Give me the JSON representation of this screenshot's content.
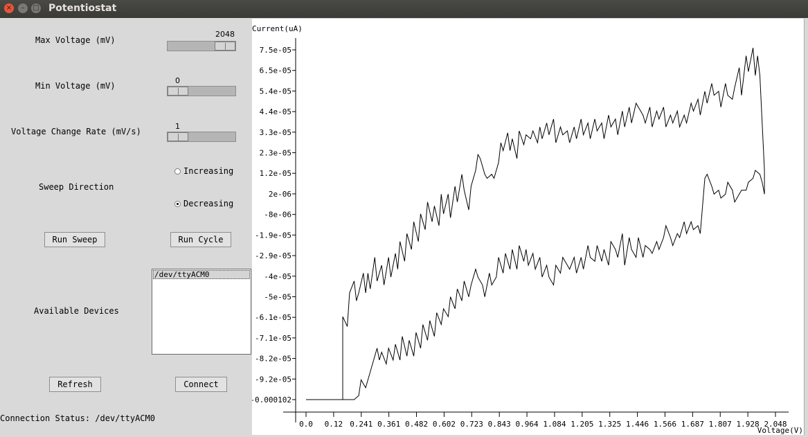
{
  "window": {
    "title": "Potentiostat"
  },
  "controls": {
    "max_voltage": {
      "label": "Max Voltage (mV)",
      "value": "2048",
      "fraction": 1.0
    },
    "min_voltage": {
      "label": "Min Voltage (mV)",
      "value": "0",
      "fraction": 0.0
    },
    "rate": {
      "label": "Voltage Change Rate (mV/s)",
      "value": "1",
      "fraction": 0.0
    },
    "sweep": {
      "label": "Sweep Direction",
      "options": [
        "Increasing",
        "Decreasing"
      ],
      "selected": "Decreasing"
    },
    "run_sweep": "Run Sweep",
    "run_cycle": "Run Cycle",
    "devices_label": "Available Devices",
    "devices": [
      "/dev/ttyACM0"
    ],
    "refresh": "Refresh",
    "connect": "Connect",
    "status": "Connection Status: /dev/ttyACM0"
  },
  "chart_data": {
    "type": "line",
    "ylabel": "Current(uA)",
    "xlabel": "Voltage(V)",
    "x_ticks": [
      "0.0",
      "0.12",
      "0.241",
      "0.361",
      "0.482",
      "0.602",
      "0.723",
      "0.843",
      "0.964",
      "1.084",
      "1.205",
      "1.325",
      "1.446",
      "1.566",
      "1.687",
      "1.807",
      "1.928",
      "2.048"
    ],
    "y_ticks": [
      "7.5e-05",
      "6.5e-05",
      "5.4e-05",
      "4.4e-05",
      "3.3e-05",
      "2.3e-05",
      "1.2e-05",
      "2e-06",
      "-8e-06",
      "-1.9e-05",
      "-2.9e-05",
      "-4e-05",
      "-5e-05",
      "-6.1e-05",
      "-7.1e-05",
      "-8.2e-05",
      "-9.2e-05",
      "-0.000102"
    ],
    "xlim": [
      0,
      2.048
    ],
    "ylim": [
      -0.000102,
      7.5e-05
    ],
    "series": [
      {
        "values": [
          [
            0.0,
            -0.000102
          ],
          [
            0.1,
            -0.000102
          ],
          [
            0.16,
            -0.000102
          ],
          [
            0.16,
            -6e-05
          ],
          [
            0.18,
            -6.5e-05
          ],
          [
            0.19,
            -4.8e-05
          ],
          [
            0.21,
            -4.2e-05
          ],
          [
            0.22,
            -5.2e-05
          ],
          [
            0.23,
            -4.8e-05
          ],
          [
            0.25,
            -3.8e-05
          ],
          [
            0.26,
            -4.8e-05
          ],
          [
            0.27,
            -3.8e-05
          ],
          [
            0.28,
            -4.6e-05
          ],
          [
            0.3,
            -3e-05
          ],
          [
            0.31,
            -4.2e-05
          ],
          [
            0.33,
            -3.4e-05
          ],
          [
            0.34,
            -4.4e-05
          ],
          [
            0.36,
            -3e-05
          ],
          [
            0.37,
            -4e-05
          ],
          [
            0.39,
            -2.8e-05
          ],
          [
            0.4,
            -3.6e-05
          ],
          [
            0.41,
            -2.2e-05
          ],
          [
            0.43,
            -3.2e-05
          ],
          [
            0.44,
            -1.8e-05
          ],
          [
            0.46,
            -2.6e-05
          ],
          [
            0.47,
            -1.2e-05
          ],
          [
            0.49,
            -2.2e-05
          ],
          [
            0.5,
            -8e-06
          ],
          [
            0.52,
            -1.6e-05
          ],
          [
            0.53,
            -2e-06
          ],
          [
            0.55,
            -1.2e-05
          ],
          [
            0.56,
            -4e-06
          ],
          [
            0.58,
            -1.4e-05
          ],
          [
            0.59,
            2e-06
          ],
          [
            0.6,
            -8e-06
          ],
          [
            0.62,
            2e-06
          ],
          [
            0.63,
            -1e-05
          ],
          [
            0.65,
            6e-06
          ],
          [
            0.66,
            -2e-06
          ],
          [
            0.68,
            1.2e-05
          ],
          [
            0.69,
            4e-06
          ],
          [
            0.71,
            -6e-06
          ],
          [
            0.72,
            6e-06
          ],
          [
            0.74,
            1.4e-05
          ],
          [
            0.75,
            2.2e-05
          ],
          [
            0.76,
            2e-05
          ],
          [
            0.78,
            1.2e-05
          ],
          [
            0.79,
            1e-05
          ],
          [
            0.81,
            1.2e-05
          ],
          [
            0.82,
            1e-05
          ],
          [
            0.84,
            1.8e-05
          ],
          [
            0.85,
            2.8e-05
          ],
          [
            0.86,
            2.4e-05
          ],
          [
            0.88,
            3.3e-05
          ],
          [
            0.89,
            2.4e-05
          ],
          [
            0.9,
            3e-05
          ],
          [
            0.92,
            2e-05
          ],
          [
            0.93,
            3.4e-05
          ],
          [
            0.95,
            2.7e-05
          ],
          [
            0.96,
            3.2e-05
          ],
          [
            0.98,
            3e-05
          ],
          [
            0.99,
            3.4e-05
          ],
          [
            1.01,
            2.8e-05
          ],
          [
            1.02,
            3.6e-05
          ],
          [
            1.03,
            3e-05
          ],
          [
            1.05,
            3.8e-05
          ],
          [
            1.06,
            3.2e-05
          ],
          [
            1.08,
            4e-05
          ],
          [
            1.09,
            2.8e-05
          ],
          [
            1.11,
            3.6e-05
          ],
          [
            1.12,
            3.2e-05
          ],
          [
            1.14,
            3.4e-05
          ],
          [
            1.15,
            2.8e-05
          ],
          [
            1.17,
            3.6e-05
          ],
          [
            1.18,
            3e-05
          ],
          [
            1.2,
            4e-05
          ],
          [
            1.21,
            3.2e-05
          ],
          [
            1.23,
            3.8e-05
          ],
          [
            1.24,
            3e-05
          ],
          [
            1.26,
            4e-05
          ],
          [
            1.27,
            3.4e-05
          ],
          [
            1.29,
            3.8e-05
          ],
          [
            1.3,
            3e-05
          ],
          [
            1.32,
            4.2e-05
          ],
          [
            1.33,
            3.6e-05
          ],
          [
            1.35,
            4e-05
          ],
          [
            1.36,
            3.2e-05
          ],
          [
            1.38,
            4.4e-05
          ],
          [
            1.39,
            3.6e-05
          ],
          [
            1.41,
            4.6e-05
          ],
          [
            1.42,
            3.8e-05
          ],
          [
            1.44,
            4.8e-05
          ],
          [
            1.45,
            4.6e-05
          ],
          [
            1.47,
            4.2e-05
          ],
          [
            1.48,
            3.8e-05
          ],
          [
            1.5,
            4.6e-05
          ],
          [
            1.51,
            3.6e-05
          ],
          [
            1.53,
            4.4e-05
          ],
          [
            1.54,
            4e-05
          ],
          [
            1.56,
            4.6e-05
          ],
          [
            1.57,
            3.6e-05
          ],
          [
            1.59,
            4.2e-05
          ],
          [
            1.6,
            3.8e-05
          ],
          [
            1.62,
            4.4e-05
          ],
          [
            1.63,
            3.6e-05
          ],
          [
            1.65,
            4.2e-05
          ],
          [
            1.66,
            3.8e-05
          ],
          [
            1.68,
            4.8e-05
          ],
          [
            1.69,
            4.4e-05
          ],
          [
            1.71,
            5e-05
          ],
          [
            1.72,
            4.2e-05
          ],
          [
            1.74,
            5.4e-05
          ],
          [
            1.75,
            4.8e-05
          ],
          [
            1.77,
            5.8e-05
          ],
          [
            1.78,
            5.2e-05
          ],
          [
            1.8,
            5.4e-05
          ],
          [
            1.81,
            4.6e-05
          ],
          [
            1.83,
            5.8e-05
          ],
          [
            1.84,
            5.2e-05
          ],
          [
            1.86,
            5e-05
          ],
          [
            1.87,
            5.6e-05
          ],
          [
            1.89,
            6.6e-05
          ],
          [
            1.9,
            5.2e-05
          ],
          [
            1.92,
            7.2e-05
          ],
          [
            1.93,
            6.4e-05
          ],
          [
            1.95,
            7.6e-05
          ],
          [
            1.96,
            6.2e-05
          ],
          [
            1.97,
            7.2e-05
          ],
          [
            1.98,
            6.2e-05
          ],
          [
            2.0,
            1.4e-05
          ],
          [
            2.0,
            2e-06
          ]
        ]
      },
      {
        "values": [
          [
            2.0,
            2e-06
          ],
          [
            1.99,
            8e-06
          ],
          [
            1.98,
            1.2e-05
          ],
          [
            1.96,
            1.4e-05
          ],
          [
            1.95,
            1e-05
          ],
          [
            1.93,
            8e-06
          ],
          [
            1.92,
            4e-06
          ],
          [
            1.9,
            4e-06
          ],
          [
            1.89,
            2e-06
          ],
          [
            1.87,
            -2e-06
          ],
          [
            1.86,
            4e-06
          ],
          [
            1.84,
            8e-06
          ],
          [
            1.83,
            2e-06
          ],
          [
            1.81,
            0.0
          ],
          [
            1.8,
            4e-06
          ],
          [
            1.78,
            2e-06
          ],
          [
            1.77,
            6e-06
          ],
          [
            1.75,
            1.2e-05
          ],
          [
            1.74,
            1e-05
          ],
          [
            1.72,
            -1.8e-05
          ],
          [
            1.71,
            -1.4e-05
          ],
          [
            1.69,
            -1.6e-05
          ],
          [
            1.68,
            -1.2e-05
          ],
          [
            1.66,
            -1.8e-05
          ],
          [
            1.65,
            -1.2e-05
          ],
          [
            1.63,
            -2e-05
          ],
          [
            1.62,
            -1.8e-05
          ],
          [
            1.6,
            -2.4e-05
          ],
          [
            1.59,
            -2e-05
          ],
          [
            1.57,
            -1.4e-05
          ],
          [
            1.56,
            -2e-05
          ],
          [
            1.54,
            -2.6e-05
          ],
          [
            1.53,
            -2.2e-05
          ],
          [
            1.51,
            -2.8e-05
          ],
          [
            1.5,
            -2.6e-05
          ],
          [
            1.48,
            -2.4e-05
          ],
          [
            1.47,
            -3e-05
          ],
          [
            1.45,
            -2e-05
          ],
          [
            1.44,
            -3e-05
          ],
          [
            1.42,
            -2.6e-05
          ],
          [
            1.41,
            -2e-05
          ],
          [
            1.39,
            -3.4e-05
          ],
          [
            1.38,
            -1.8e-05
          ],
          [
            1.36,
            -3e-05
          ],
          [
            1.35,
            -2.6e-05
          ],
          [
            1.33,
            -2.2e-05
          ],
          [
            1.32,
            -3.4e-05
          ],
          [
            1.3,
            -2.6e-05
          ],
          [
            1.29,
            -3.2e-05
          ],
          [
            1.27,
            -2.4e-05
          ],
          [
            1.26,
            -3.2e-05
          ],
          [
            1.24,
            -3e-05
          ],
          [
            1.23,
            -2.4e-05
          ],
          [
            1.21,
            -3.6e-05
          ],
          [
            1.2,
            -3e-05
          ],
          [
            1.18,
            -3.8e-05
          ],
          [
            1.17,
            -3e-05
          ],
          [
            1.15,
            -3.6e-05
          ],
          [
            1.14,
            -3.4e-05
          ],
          [
            1.12,
            -3e-05
          ],
          [
            1.11,
            -3.8e-05
          ],
          [
            1.09,
            -3.4e-05
          ],
          [
            1.08,
            -4.4e-05
          ],
          [
            1.06,
            -4e-05
          ],
          [
            1.05,
            -3.4e-05
          ],
          [
            1.03,
            -4e-05
          ],
          [
            1.02,
            -3e-05
          ],
          [
            1.0,
            -3.6e-05
          ],
          [
            0.99,
            -2.8e-05
          ],
          [
            0.97,
            -3.4e-05
          ],
          [
            0.96,
            -2.6e-05
          ],
          [
            0.95,
            -3.2e-05
          ],
          [
            0.93,
            -2.4e-05
          ],
          [
            0.92,
            -3.6e-05
          ],
          [
            0.9,
            -2.6e-05
          ],
          [
            0.89,
            -3.6e-05
          ],
          [
            0.87,
            -2.8e-05
          ],
          [
            0.86,
            -3.8e-05
          ],
          [
            0.84,
            -3e-05
          ],
          [
            0.83,
            -4e-05
          ],
          [
            0.81,
            -4.4e-05
          ],
          [
            0.8,
            -3.8e-05
          ],
          [
            0.78,
            -5e-05
          ],
          [
            0.77,
            -4.4e-05
          ],
          [
            0.75,
            -4e-05
          ],
          [
            0.74,
            -3.6e-05
          ],
          [
            0.72,
            -4.4e-05
          ],
          [
            0.71,
            -5e-05
          ],
          [
            0.69,
            -4.2e-05
          ],
          [
            0.68,
            -5.2e-05
          ],
          [
            0.66,
            -4.6e-05
          ],
          [
            0.65,
            -5.6e-05
          ],
          [
            0.63,
            -5e-05
          ],
          [
            0.62,
            -6e-05
          ],
          [
            0.6,
            -5.6e-05
          ],
          [
            0.59,
            -6.4e-05
          ],
          [
            0.57,
            -5.8e-05
          ],
          [
            0.56,
            -7e-05
          ],
          [
            0.54,
            -6.2e-05
          ],
          [
            0.53,
            -7.2e-05
          ],
          [
            0.51,
            -6.4e-05
          ],
          [
            0.5,
            -7.6e-05
          ],
          [
            0.48,
            -6.8e-05
          ],
          [
            0.47,
            -8e-05
          ],
          [
            0.45,
            -7.2e-05
          ],
          [
            0.44,
            -8e-05
          ],
          [
            0.42,
            -7e-05
          ],
          [
            0.41,
            -8.2e-05
          ],
          [
            0.39,
            -7.4e-05
          ],
          [
            0.38,
            -8.2e-05
          ],
          [
            0.36,
            -7.6e-05
          ],
          [
            0.35,
            -8.4e-05
          ],
          [
            0.33,
            -7.8e-05
          ],
          [
            0.32,
            -8.2e-05
          ],
          [
            0.31,
            -7.6e-05
          ],
          [
            0.29,
            -8.4e-05
          ],
          [
            0.27,
            -9.2e-05
          ],
          [
            0.26,
            -9.6e-05
          ],
          [
            0.24,
            -9.2e-05
          ],
          [
            0.23,
            -0.0001
          ],
          [
            0.21,
            -0.000102
          ],
          [
            0.18,
            -0.000102
          ],
          [
            0.16,
            -0.000102
          ]
        ]
      }
    ]
  }
}
